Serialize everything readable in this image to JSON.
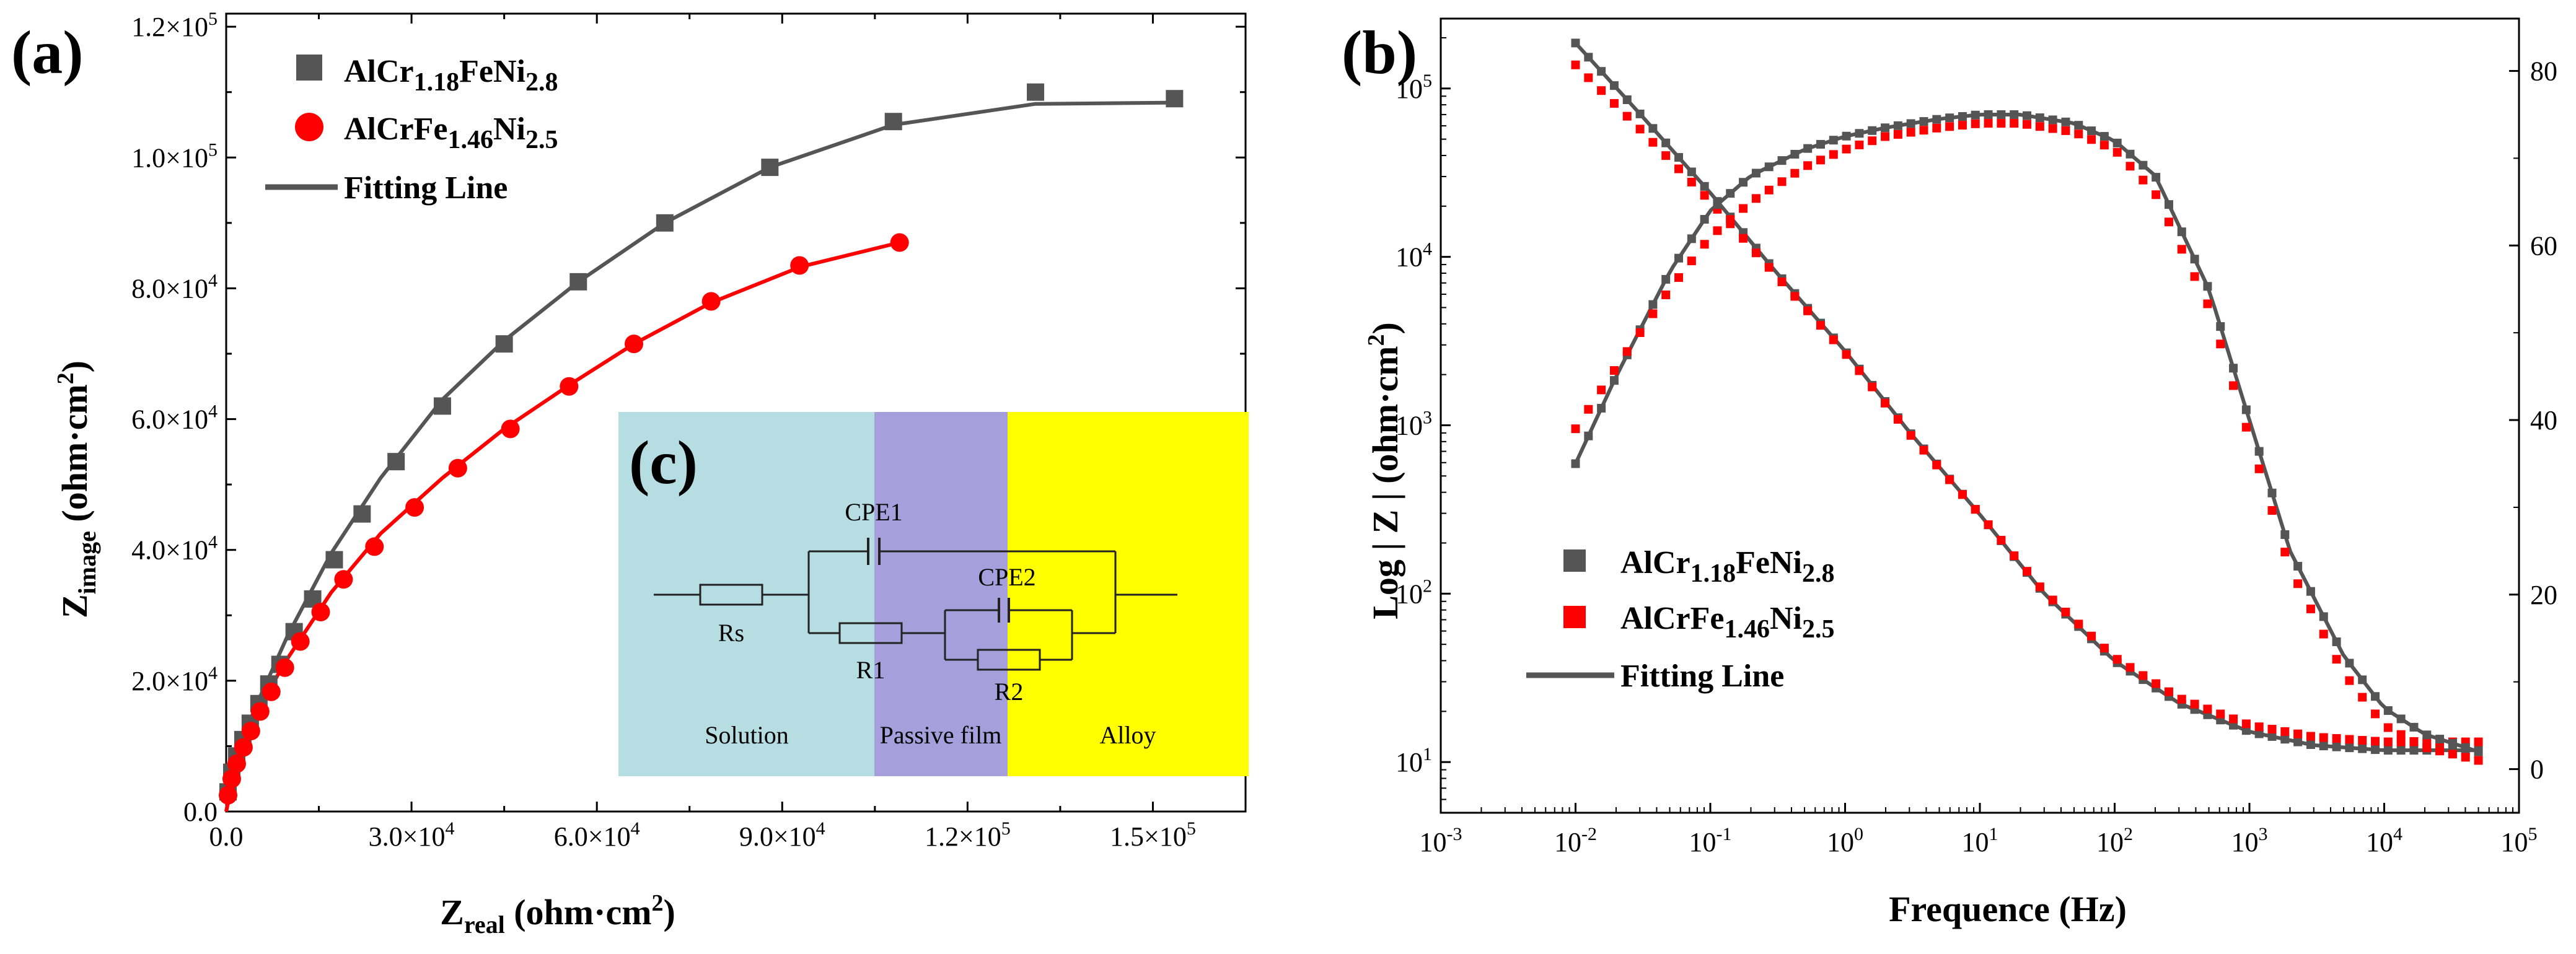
{
  "colors": {
    "s1": "#555555",
    "s2": "#ff0000",
    "fit": "#555555",
    "solution": "#b6dde1",
    "passive": "#a59fdb",
    "alloy": "#ffff00"
  },
  "panel_labels": {
    "a": "(a)",
    "b": "(b)",
    "c": "(c)"
  },
  "legend": {
    "s1": {
      "pre": "AlCr",
      "sub1": "1.18",
      "mid": "FeNi",
      "sub2": "2.8"
    },
    "s2": {
      "pre": "AlCrFe",
      "sub1": "1.46",
      "mid": "Ni",
      "sub2": "2.5"
    },
    "fit": "Fitting Line"
  },
  "circuit": {
    "rs": "Rs",
    "cpe1": "CPE1",
    "r1": "R1",
    "cpe2": "CPE2",
    "r2": "R2",
    "regions": [
      "Solution",
      "Passive film",
      "Alloy"
    ]
  },
  "chart_data": [
    {
      "type": "scatter",
      "panel": "(a)",
      "xlabel": {
        "main": "Z",
        "sub": "real",
        "unit": " (ohm·cm",
        "sup": "2",
        "close": ")"
      },
      "ylabel": {
        "main": "Z",
        "sub": "image",
        "unit": " (ohm·cm",
        "sup": "2",
        "close": ")"
      },
      "xlim": [
        0,
        165000
      ],
      "ylim": [
        0,
        122000
      ],
      "x_ticks": [
        {
          "v": 0,
          "m": "0.0",
          "e": ""
        },
        {
          "v": 30000,
          "m": "3.0×10",
          "e": "4"
        },
        {
          "v": 60000,
          "m": "6.0×10",
          "e": "4"
        },
        {
          "v": 90000,
          "m": "9.0×10",
          "e": "4"
        },
        {
          "v": 120000,
          "m": "1.2×10",
          "e": "5"
        },
        {
          "v": 150000,
          "m": "1.5×10",
          "e": "5"
        }
      ],
      "y_ticks": [
        {
          "v": 0,
          "m": "0.0",
          "e": ""
        },
        {
          "v": 20000,
          "m": "2.0×10",
          "e": "4"
        },
        {
          "v": 40000,
          "m": "4.0×10",
          "e": "4"
        },
        {
          "v": 60000,
          "m": "6.0×10",
          "e": "4"
        },
        {
          "v": 80000,
          "m": "8.0×10",
          "e": "4"
        },
        {
          "v": 100000,
          "m": "1.0×10",
          "e": "5"
        },
        {
          "v": 120000,
          "m": "1.2×10",
          "e": "5"
        }
      ],
      "series": [
        {
          "name": "AlCr1.18FeNi2.8",
          "marker": "square",
          "x": [
            300,
            900,
            1700,
            2700,
            3900,
            5300,
            6900,
            8700,
            11000,
            14000,
            17500,
            22000,
            27500,
            35000,
            45000,
            57000,
            71000,
            88000,
            108000,
            131000,
            153500
          ],
          "y": [
            3000,
            6000,
            8500,
            11000,
            13500,
            16500,
            19500,
            22500,
            27500,
            32500,
            38500,
            45500,
            53500,
            62000,
            71500,
            81000,
            90000,
            98500,
            105500,
            110000,
            109000
          ]
        },
        {
          "name": "AlCrFe1.46Ni2.5",
          "marker": "circle",
          "x": [
            300,
            900,
            1700,
            2800,
            4000,
            5500,
            7300,
            9500,
            12000,
            15300,
            19000,
            24000,
            30500,
            37500,
            46000,
            55500,
            66000,
            78500,
            92800,
            109000
          ],
          "y": [
            2500,
            5000,
            7300,
            9800,
            12300,
            15300,
            18300,
            22000,
            26000,
            30500,
            35500,
            40500,
            46500,
            52500,
            58500,
            65000,
            71500,
            78000,
            83500,
            87000
          ]
        },
        {
          "name": "Fitting Line (AlCr1.18FeNi2.8)",
          "type": "line",
          "x": [
            0,
            2000,
            5000,
            10000,
            17000,
            25000,
            35000,
            45000,
            57000,
            71000,
            88000,
            108000,
            131000,
            153500
          ],
          "y": [
            0,
            9500,
            16500,
            27000,
            39500,
            51000,
            63000,
            72000,
            81000,
            90000,
            98500,
            105000,
            108200,
            108400
          ]
        },
        {
          "name": "Fitting Line (AlCrFe1.46Ni2.5)",
          "type": "line",
          "x": [
            0,
            2000,
            5000,
            10000,
            17000,
            25000,
            35000,
            45000,
            56000,
            66000,
            78500,
            93000,
            109000
          ],
          "y": [
            0,
            8500,
            15500,
            23500,
            33500,
            42500,
            51000,
            58500,
            65500,
            71500,
            77800,
            83300,
            87000
          ]
        }
      ]
    },
    {
      "type": "scatter",
      "panel": "(b)",
      "xlabel": "Frequence (Hz)",
      "ylabel": {
        "pre": "Log",
        "mid": "Z",
        "unit": "(ohm·cm",
        "sup": "2",
        "close": ")"
      },
      "x_scale": "log",
      "y_scale": "log",
      "xlim": [
        0.001,
        100000
      ],
      "ylim": [
        5,
        260000
      ],
      "y2lim": [
        -5,
        86
      ],
      "x_ticks": [
        {
          "v": 0.001,
          "m": "10",
          "e": "-3"
        },
        {
          "v": 0.01,
          "m": "10",
          "e": "-2"
        },
        {
          "v": 0.1,
          "m": "10",
          "e": "-1"
        },
        {
          "v": 1,
          "m": "10",
          "e": "0"
        },
        {
          "v": 10,
          "m": "10",
          "e": "1"
        },
        {
          "v": 100,
          "m": "10",
          "e": "2"
        },
        {
          "v": 1000,
          "m": "10",
          "e": "3"
        },
        {
          "v": 10000,
          "m": "10",
          "e": "4"
        },
        {
          "v": 100000,
          "m": "10",
          "e": "5"
        }
      ],
      "y_ticks": [
        {
          "v": 10,
          "m": "10",
          "e": "1"
        },
        {
          "v": 100,
          "m": "10",
          "e": "2"
        },
        {
          "v": 1000,
          "m": "10",
          "e": "3"
        },
        {
          "v": 10000,
          "m": "10",
          "e": "4"
        },
        {
          "v": 100000,
          "m": "10",
          "e": "5"
        }
      ],
      "y2_ticks": [
        0,
        20,
        40,
        60,
        80
      ],
      "series": [
        {
          "name": "AlCr1.18FeNi2.8 |Z|",
          "color_key": "s1",
          "axis": "left",
          "freq": [
            0.01,
            0.03,
            0.1,
            0.3,
            1,
            3,
            10,
            30,
            100,
            300,
            1000,
            3000,
            10000,
            30000,
            50000
          ],
          "logz": [
            5.27,
            4.85,
            4.38,
            3.92,
            3.44,
            2.96,
            2.47,
            2.0,
            1.6,
            1.35,
            1.18,
            1.1,
            1.07,
            1.07,
            1.07
          ]
        },
        {
          "name": "AlCrFe1.46Ni2.5 |Z|",
          "color_key": "s2",
          "axis": "left",
          "freq": [
            0.01,
            0.03,
            0.1,
            0.3,
            1,
            3,
            10,
            30,
            100,
            300,
            1000,
            3000,
            10000,
            30000,
            50000
          ],
          "logz": [
            5.14,
            4.76,
            4.33,
            3.9,
            3.43,
            2.95,
            2.47,
            2.01,
            1.62,
            1.38,
            1.22,
            1.15,
            1.12,
            1.12,
            1.12
          ]
        },
        {
          "name": "AlCr1.18FeNi2.8 phase",
          "color_key": "s1",
          "axis": "right",
          "freq": [
            0.01,
            0.02,
            0.05,
            0.1,
            0.2,
            0.5,
            1,
            2,
            5,
            10,
            20,
            50,
            100,
            200,
            500,
            1000,
            2000,
            5000,
            10000,
            20000,
            50000
          ],
          "phase": [
            35,
            45,
            57,
            64,
            68,
            71,
            72.5,
            73.5,
            74.5,
            75,
            75,
            74,
            72,
            68,
            55,
            40,
            25,
            13,
            7,
            4,
            2
          ]
        },
        {
          "name": "AlCrFe1.46Ni2.5 phase",
          "color_key": "s2",
          "axis": "right",
          "freq": [
            0.01,
            0.02,
            0.05,
            0.1,
            0.2,
            0.5,
            1,
            2,
            5,
            10,
            20,
            50,
            100,
            200,
            500,
            1000,
            2000,
            5000,
            10000,
            20000,
            50000
          ],
          "phase": [
            39,
            46,
            55,
            61,
            65,
            69,
            71,
            72.5,
            73.5,
            74,
            74,
            73,
            71,
            66,
            53,
            38,
            23,
            11,
            5,
            2.5,
            1
          ]
        }
      ]
    }
  ]
}
